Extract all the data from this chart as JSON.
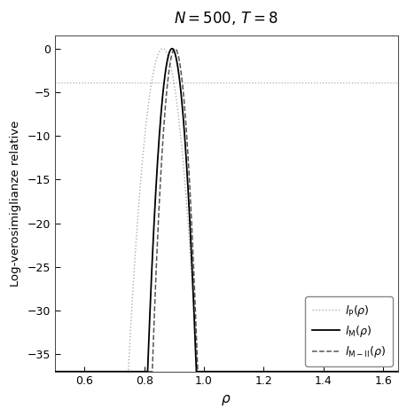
{
  "title": "$N=500,\\, T=8$",
  "xlabel": "$\\rho$",
  "ylabel": "Log-verosimiglianze relative",
  "xlim": [
    0.5,
    1.65
  ],
  "ylim": [
    -37,
    1.5
  ],
  "yticks": [
    0,
    -5,
    -10,
    -15,
    -20,
    -25,
    -30,
    -35
  ],
  "xticks": [
    0.6,
    0.8,
    1.0,
    1.2,
    1.4,
    1.6
  ],
  "hline_y": -3.84,
  "rho_hat_M": 0.893,
  "rho_hat_P": 0.862,
  "rho_hat_MII": 0.903,
  "sigma2_M": 9e-05,
  "sigma2_P": 0.00018,
  "sigma2_MII": 7.8e-05,
  "line_color_P": "#aaaaaa",
  "line_color_M": "#000000",
  "line_color_MII": "#555555",
  "background": "#ffffff",
  "legend_labels": [
    "$l_{\\mathrm{P}}(\\rho)$",
    "$l_{\\mathrm{M}}(\\rho)$",
    "$l_{\\mathrm{M-II}}(\\rho)$"
  ]
}
